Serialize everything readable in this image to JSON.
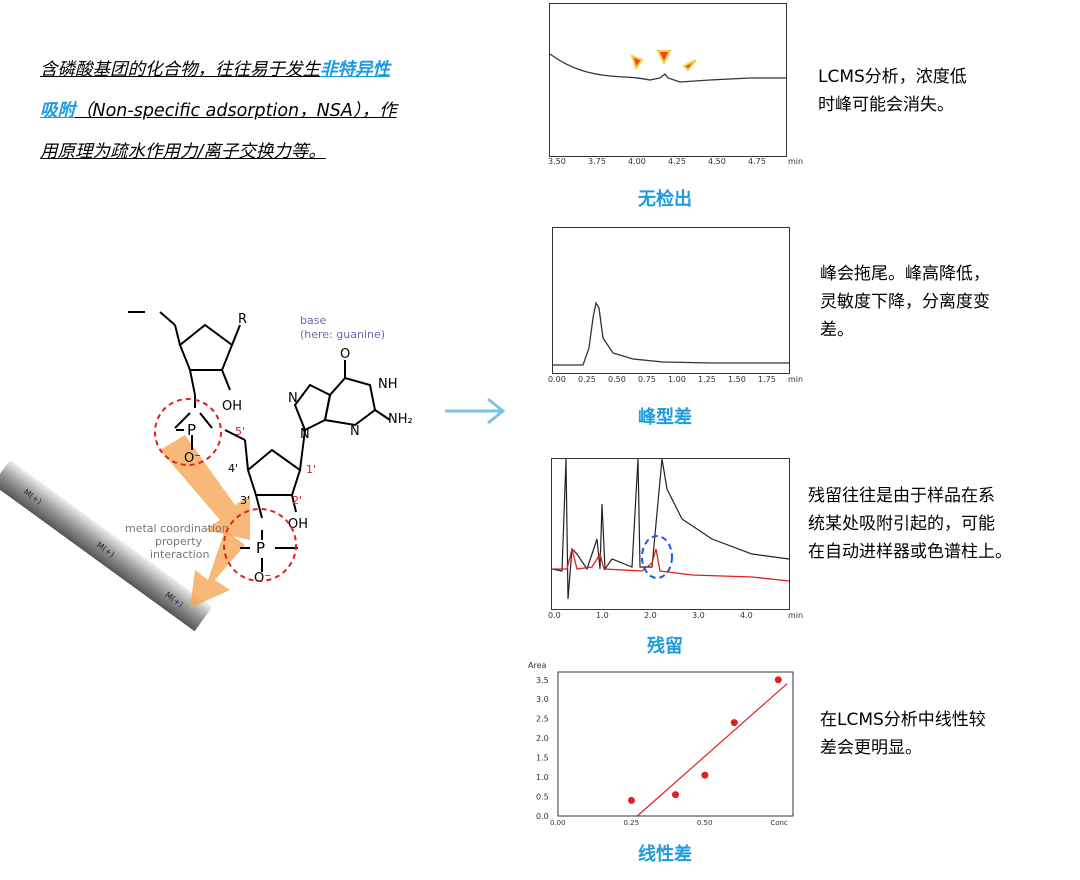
{
  "intro": {
    "part1": "含磷酸基团的化合物，往往易于发生",
    "highlight": "非特异性吸附",
    "part2": "（Non-specific adsorption，NSA），作用原理为疏水作用力/离子交换力等。"
  },
  "molecule": {
    "r_label": "R",
    "base_label": "base",
    "base_note": "(here: guanine)",
    "oh1": "OH",
    "oh2": "OH",
    "nh": "NH",
    "nh2": "NH₂",
    "o_top": "O",
    "n_labels": [
      "N",
      "N",
      "N"
    ],
    "p1": "P",
    "p2": "P",
    "o_minus": "O⁻",
    "primes": [
      "5'",
      "4'",
      "3'",
      "2'",
      "1'"
    ],
    "interaction": [
      "metal coordination",
      "property",
      "interaction"
    ],
    "metal": "M(+)"
  },
  "colors": {
    "accent": "#1e9be0",
    "red": "#e02020",
    "arrow": "#f5a24b"
  },
  "panels": [
    {
      "caption": "无检出",
      "description": [
        "LCMS分析，浓度低",
        "时峰可能会消失。"
      ],
      "xticks": [
        "3.50",
        "3.75",
        "4.00",
        "4.25",
        "4.50",
        "4.75",
        "min"
      ]
    },
    {
      "caption": "峰型差",
      "description": [
        "峰会拖尾。峰高降低，",
        "灵敏度下降，分离度变",
        "差。"
      ],
      "xticks": [
        "0.00",
        "0.25",
        "0.50",
        "0.75",
        "1.00",
        "1.25",
        "1.50",
        "1.75",
        "min"
      ]
    },
    {
      "caption": "残留",
      "description": [
        "残留往往是由于样品在系",
        "统某处吸附引起的，可能",
        "在自动进样器或色谱柱上。"
      ],
      "xticks": [
        "0.0",
        "1.0",
        "2.0",
        "3.0",
        "4.0",
        "min"
      ]
    },
    {
      "caption": "线性差",
      "description": [
        "在LCMS分析中线性较",
        "差会更明显。"
      ],
      "xticks": [
        "0.00",
        "0.25",
        "0.50",
        "Conc"
      ],
      "yticks": [
        "3.5",
        "3.0",
        "2.5",
        "2.0",
        "1.5",
        "1.0",
        "0.5",
        "0.0"
      ],
      "ylabel": "Area"
    }
  ],
  "chart_data": {
    "type": "scatter",
    "title": "",
    "xlabel": "Conc",
    "ylabel": "Area",
    "ylim": [
      0,
      3.5
    ],
    "points": [
      {
        "x": 0.25,
        "y": 0.4
      },
      {
        "x": 0.4,
        "y": 0.55
      },
      {
        "x": 0.5,
        "y": 1.05
      },
      {
        "x": 0.6,
        "y": 2.4
      },
      {
        "x": 0.75,
        "y": 3.5
      }
    ],
    "fit_line": [
      [
        0.27,
        0.0
      ],
      [
        0.78,
        3.4
      ]
    ]
  }
}
